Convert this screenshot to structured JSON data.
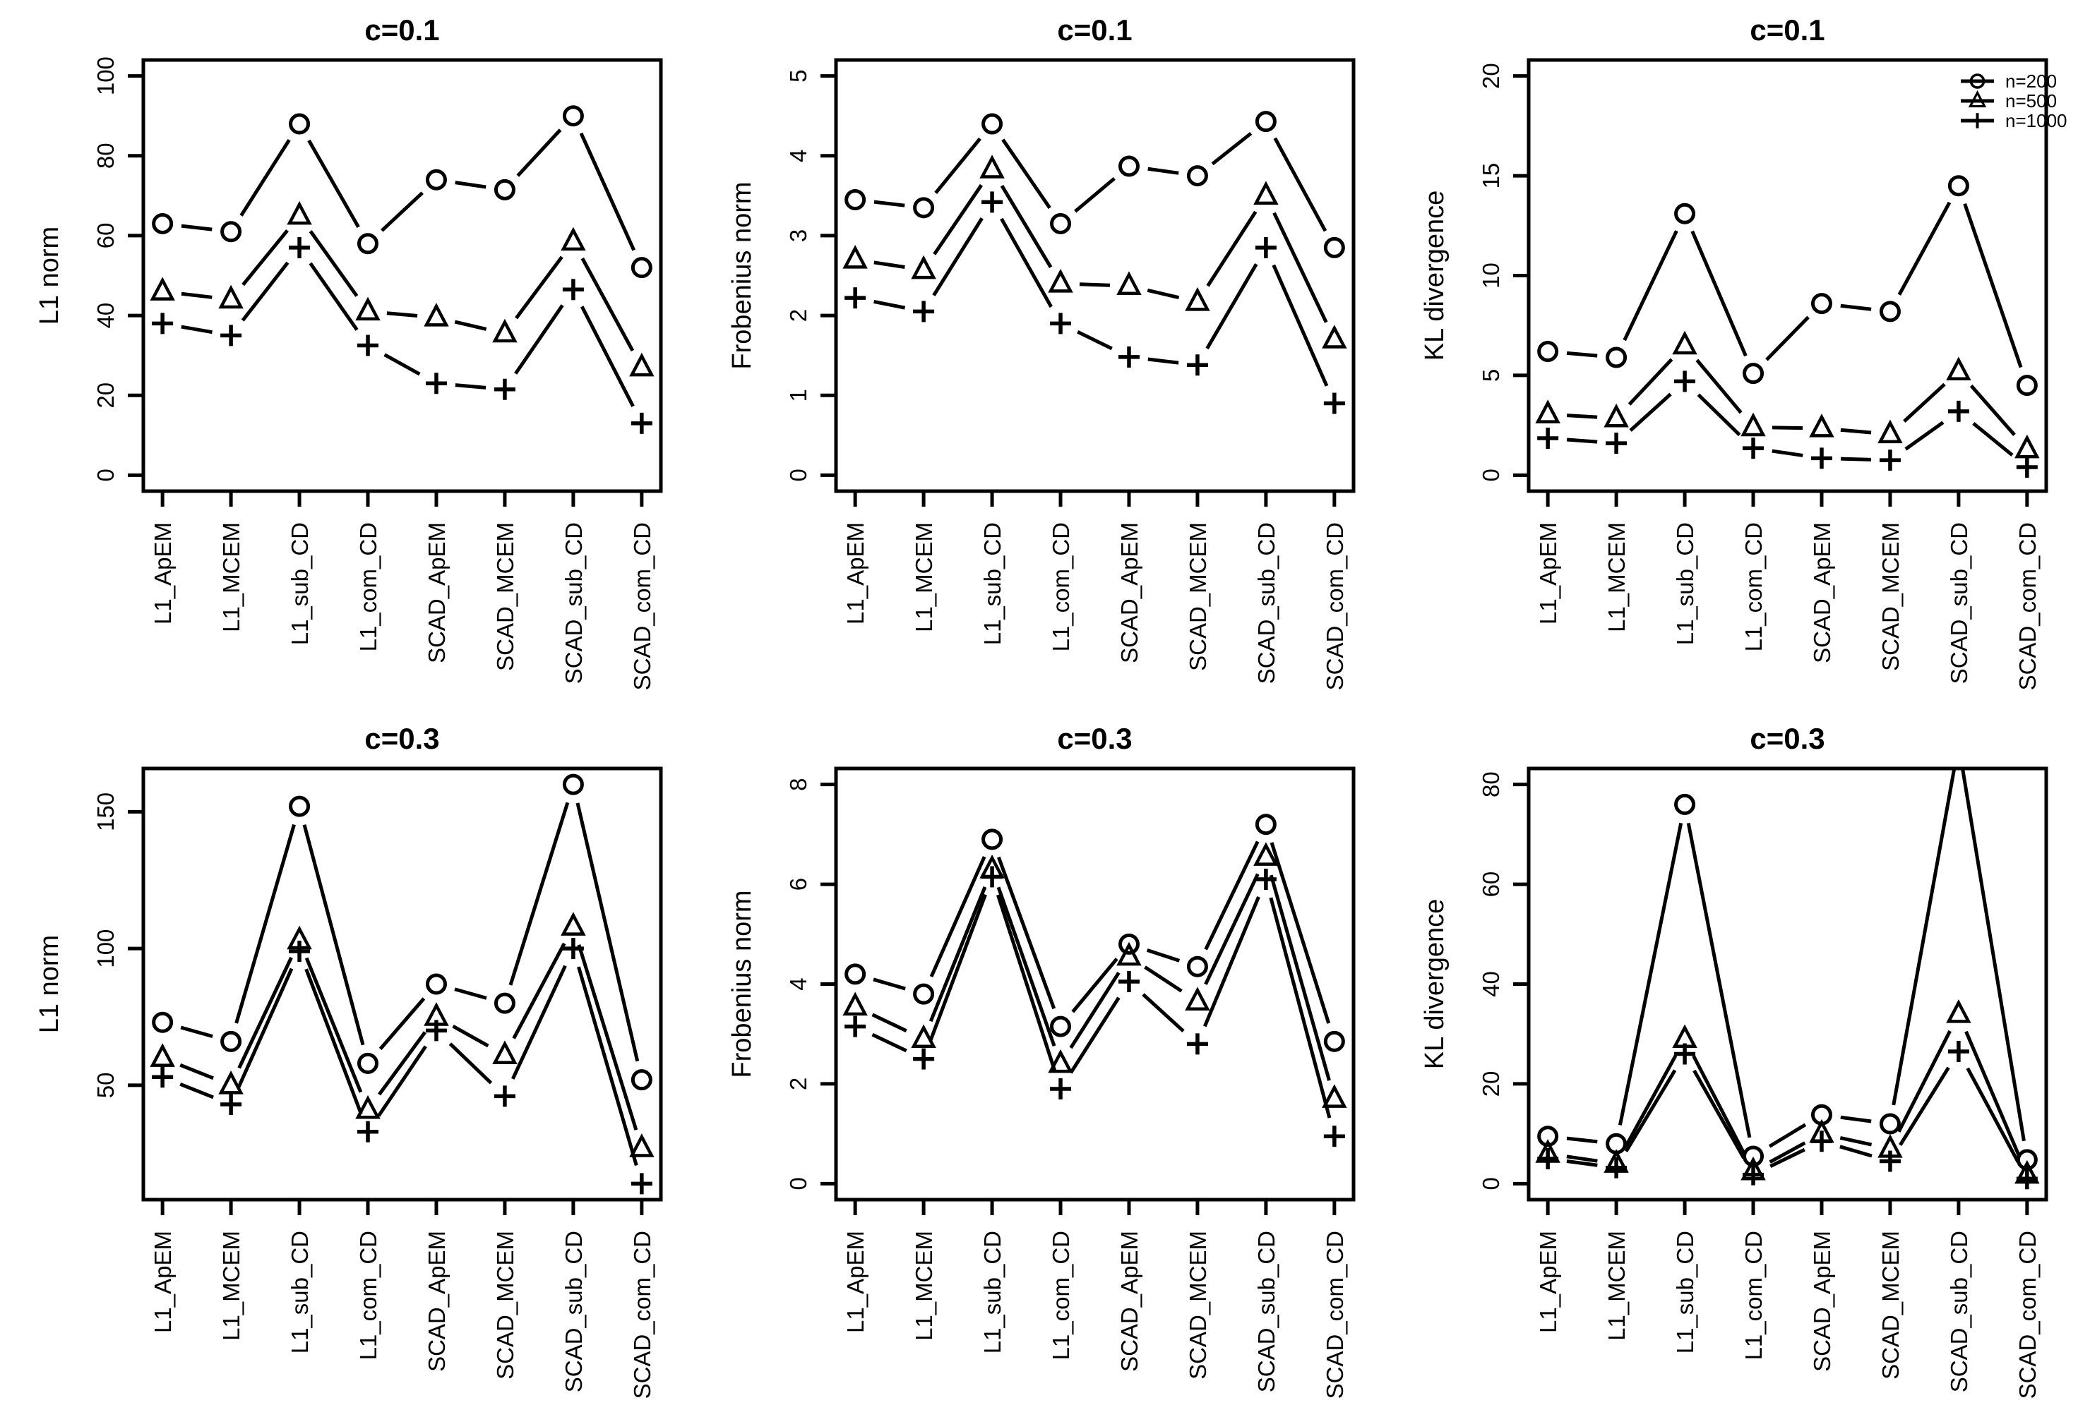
{
  "figure": {
    "layout": "2x3 grid of R base line plots",
    "background_color": "#ffffff",
    "ink_color": "#000000",
    "legend": {
      "position": "topright-of-third-panel",
      "items": [
        {
          "label": "n=200",
          "marker": "circle"
        },
        {
          "label": "n=500",
          "marker": "triangle"
        },
        {
          "label": "n=1000",
          "marker": "plus"
        }
      ]
    }
  },
  "chart_data": [
    {
      "type": "line",
      "title": "c=0.1",
      "xlabel": "",
      "ylabel": "L1 norm",
      "categories": [
        "L1_ApEM",
        "L1_MCEM",
        "L1_sub_CD",
        "L1_com_CD",
        "SCAD_ApEM",
        "SCAD_MCEM",
        "SCAD_sub_CD",
        "SCAD_com_CD"
      ],
      "yticks": [
        0,
        20,
        40,
        60,
        80,
        100
      ],
      "ylim": [
        0,
        100
      ],
      "grid": false,
      "legend": false,
      "series": [
        {
          "name": "n=200",
          "marker": "circle",
          "values": [
            63,
            61,
            88,
            58,
            74,
            71.5,
            90,
            52
          ]
        },
        {
          "name": "n=500",
          "marker": "triangle",
          "values": [
            46,
            44,
            65,
            41,
            39.5,
            35.5,
            58.5,
            27
          ]
        },
        {
          "name": "n=1000",
          "marker": "plus",
          "values": [
            38,
            35,
            57,
            32.5,
            23,
            21.5,
            46.5,
            13
          ]
        }
      ]
    },
    {
      "type": "line",
      "title": "c=0.1",
      "xlabel": "",
      "ylabel": "Frobenius norm",
      "categories": [
        "L1_ApEM",
        "L1_MCEM",
        "L1_sub_CD",
        "L1_com_CD",
        "SCAD_ApEM",
        "SCAD_MCEM",
        "SCAD_sub_CD",
        "SCAD_com_CD"
      ],
      "yticks": [
        0,
        1,
        2,
        3,
        4,
        5
      ],
      "ylim": [
        0,
        5
      ],
      "grid": false,
      "legend": false,
      "series": [
        {
          "name": "n=200",
          "marker": "circle",
          "values": [
            3.45,
            3.35,
            4.4,
            3.15,
            3.87,
            3.75,
            4.43,
            2.85
          ]
        },
        {
          "name": "n=500",
          "marker": "triangle",
          "values": [
            2.7,
            2.57,
            3.83,
            2.4,
            2.37,
            2.17,
            3.5,
            1.7
          ]
        },
        {
          "name": "n=1000",
          "marker": "plus",
          "values": [
            2.22,
            2.05,
            3.42,
            1.9,
            1.48,
            1.38,
            2.85,
            0.9
          ]
        }
      ]
    },
    {
      "type": "line",
      "title": "c=0.1",
      "xlabel": "",
      "ylabel": "KL divergence",
      "categories": [
        "L1_ApEM",
        "L1_MCEM",
        "L1_sub_CD",
        "L1_com_CD",
        "SCAD_ApEM",
        "SCAD_MCEM",
        "SCAD_sub_CD",
        "SCAD_com_CD"
      ],
      "yticks": [
        0,
        5,
        10,
        15,
        20
      ],
      "ylim": [
        0,
        20
      ],
      "grid": false,
      "legend": true,
      "legend_labels": [
        "n=200",
        "n=500",
        "n=1000"
      ],
      "series": [
        {
          "name": "n=200",
          "marker": "circle",
          "values": [
            6.2,
            5.9,
            13.1,
            5.1,
            8.6,
            8.2,
            14.5,
            4.5
          ]
        },
        {
          "name": "n=500",
          "marker": "triangle",
          "values": [
            3.05,
            2.85,
            6.5,
            2.4,
            2.35,
            2.05,
            5.2,
            1.3
          ]
        },
        {
          "name": "n=1000",
          "marker": "plus",
          "values": [
            1.85,
            1.6,
            4.7,
            1.35,
            0.85,
            0.75,
            3.2,
            0.4
          ]
        }
      ]
    },
    {
      "type": "line",
      "title": "c=0.3",
      "xlabel": "",
      "ylabel": "L1 norm",
      "categories": [
        "L1_ApEM",
        "L1_MCEM",
        "L1_sub_CD",
        "L1_com_CD",
        "SCAD_ApEM",
        "SCAD_MCEM",
        "SCAD_sub_CD",
        "SCAD_com_CD"
      ],
      "yticks": [
        50,
        100,
        150
      ],
      "ylim": [
        14,
        160
      ],
      "grid": false,
      "legend": false,
      "series": [
        {
          "name": "n=200",
          "marker": "circle",
          "values": [
            73,
            66,
            152,
            58,
            87,
            80,
            160,
            52
          ]
        },
        {
          "name": "n=500",
          "marker": "triangle",
          "values": [
            60,
            50,
            103,
            41,
            75,
            61,
            108,
            27
          ]
        },
        {
          "name": "n=1000",
          "marker": "plus",
          "values": [
            53,
            43,
            99,
            33,
            70,
            46,
            100,
            14
          ]
        }
      ]
    },
    {
      "type": "line",
      "title": "c=0.3",
      "xlabel": "",
      "ylabel": "Frobenius norm",
      "categories": [
        "L1_ApEM",
        "L1_MCEM",
        "L1_sub_CD",
        "L1_com_CD",
        "SCAD_ApEM",
        "SCAD_MCEM",
        "SCAD_sub_CD",
        "SCAD_com_CD"
      ],
      "yticks": [
        0,
        2,
        4,
        6,
        8
      ],
      "ylim": [
        0,
        8
      ],
      "grid": false,
      "legend": false,
      "series": [
        {
          "name": "n=200",
          "marker": "circle",
          "values": [
            4.2,
            3.8,
            6.9,
            3.15,
            4.8,
            4.35,
            7.2,
            2.85
          ]
        },
        {
          "name": "n=500",
          "marker": "triangle",
          "values": [
            3.55,
            2.9,
            6.3,
            2.4,
            4.55,
            3.65,
            6.55,
            1.7
          ]
        },
        {
          "name": "n=1000",
          "marker": "plus",
          "values": [
            3.15,
            2.5,
            6.15,
            1.9,
            4.05,
            2.8,
            6.1,
            0.95
          ]
        }
      ]
    },
    {
      "type": "line",
      "title": "c=0.3",
      "xlabel": "",
      "ylabel": "KL divergence",
      "categories": [
        "L1_ApEM",
        "L1_MCEM",
        "L1_sub_CD",
        "L1_com_CD",
        "SCAD_ApEM",
        "SCAD_MCEM",
        "SCAD_sub_CD",
        "SCAD_com_CD"
      ],
      "yticks": [
        0,
        20,
        40,
        60,
        80
      ],
      "ylim": [
        0,
        80
      ],
      "grid": false,
      "legend": false,
      "note": "n=200 value at SCAD_sub_CD exceeds axis top and is clipped by the plot box",
      "series": [
        {
          "name": "n=200",
          "marker": "circle",
          "values": [
            9.5,
            8,
            76,
            5.5,
            13.8,
            12,
            88,
            4.8
          ]
        },
        {
          "name": "n=500",
          "marker": "triangle",
          "values": [
            6,
            4,
            29,
            2.5,
            10,
            7,
            34,
            1.8
          ]
        },
        {
          "name": "n=1000",
          "marker": "plus",
          "values": [
            5,
            3.2,
            26,
            1.8,
            8.5,
            4.5,
            26.5,
            1
          ]
        }
      ]
    }
  ]
}
